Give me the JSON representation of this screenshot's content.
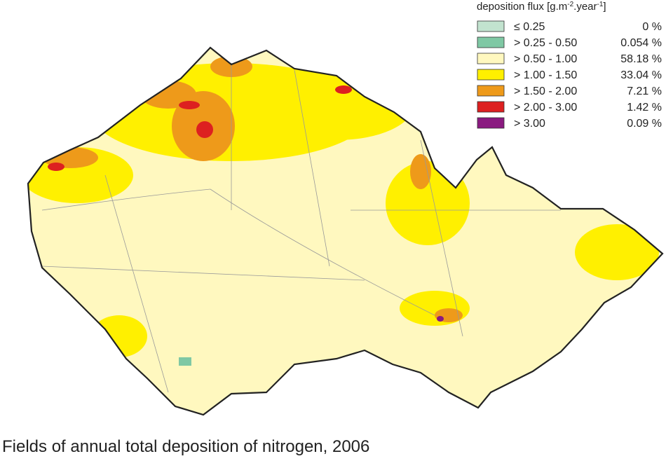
{
  "legend": {
    "title": {
      "text": "deposition flux [g.m",
      "sup1": "-2",
      "mid": ".year",
      "sup2": "-1",
      "end": "]"
    },
    "items": [
      {
        "label": "≤ 0.25",
        "share": "0 %",
        "color": "#c2e3cf"
      },
      {
        "label": "> 0.25 - 0.50",
        "share": "0.054 %",
        "color": "#7fc8a4"
      },
      {
        "label": "> 0.50 - 1.00",
        "share": "58.18 %",
        "color": "#fff8bf"
      },
      {
        "label": "> 1.00 - 1.50",
        "share": "33.04 %",
        "color": "#fff000"
      },
      {
        "label": "> 1.50 - 2.00",
        "share": "7.21 %",
        "color": "#ee9a1a"
      },
      {
        "label": "> 2.00 - 3.00",
        "share": "1.42 %",
        "color": "#dd2020"
      },
      {
        "label": "> 3.00",
        "share": "0.09 %",
        "color": "#8a1a80"
      }
    ]
  },
  "caption": "Fields of annual total deposition of nitrogen, 2006"
}
